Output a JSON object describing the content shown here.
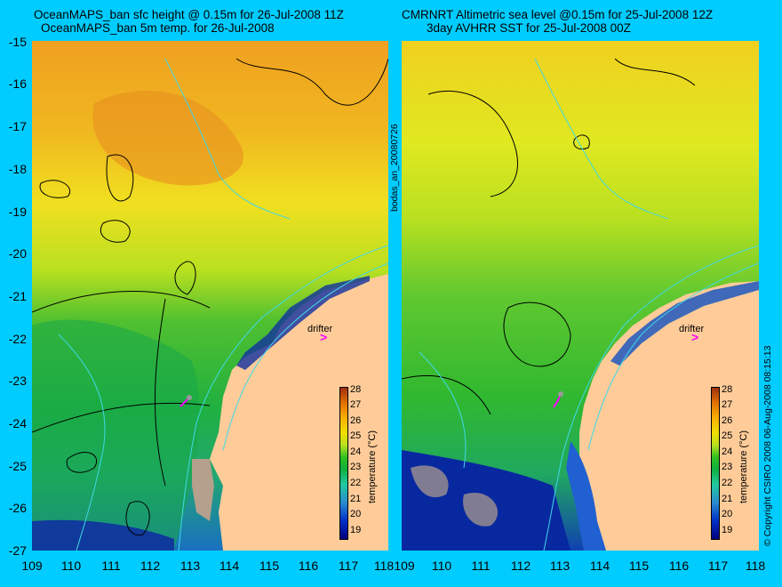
{
  "left_panel": {
    "title_line1": "OceanMAPS_ban sfc height @ 0.15m for 26-Jul-2008 11Z",
    "title_line2": "OceanMAPS_ban 5m temp. for 26-Jul-2008",
    "drifter_label": "drifter",
    "drifter_marker": ">",
    "colorbar_title": "temperature (°C)"
  },
  "right_panel": {
    "title_line1": "CMRNRT Altimetric sea level  @0.15m  for 25-Jul-2008 12Z",
    "title_line2": "3day AVHRR SST for 25-Jul-2008 00Z",
    "drifter_label": "drifter",
    "drifter_marker": ">",
    "colorbar_title": "temperature (°C)"
  },
  "side_labels": {
    "run_id": "bodas_an_20080726",
    "copyright": "© Copyright CSIRO 2008   06-Aug-2008 08:15:13"
  },
  "axes": {
    "y_ticks": [
      "-15",
      "-16",
      "-17",
      "-18",
      "-19",
      "-20",
      "-21",
      "-22",
      "-23",
      "-24",
      "-25",
      "-26",
      "-27"
    ],
    "x_ticks": [
      "109",
      "110",
      "111",
      "112",
      "113",
      "114",
      "115",
      "116",
      "117",
      "118"
    ]
  },
  "colorbar": {
    "ticks": [
      "28",
      "27",
      "26",
      "25",
      "24",
      "23",
      "22",
      "21",
      "20",
      "19"
    ],
    "range": [
      18.5,
      28.5
    ]
  },
  "colors": {
    "background": "#00ccff",
    "land": "#ffcc99",
    "shelf": "#b4a08c",
    "drifter": "#ff00ff",
    "isobath": "#40d8e8",
    "contour": "#000000"
  }
}
